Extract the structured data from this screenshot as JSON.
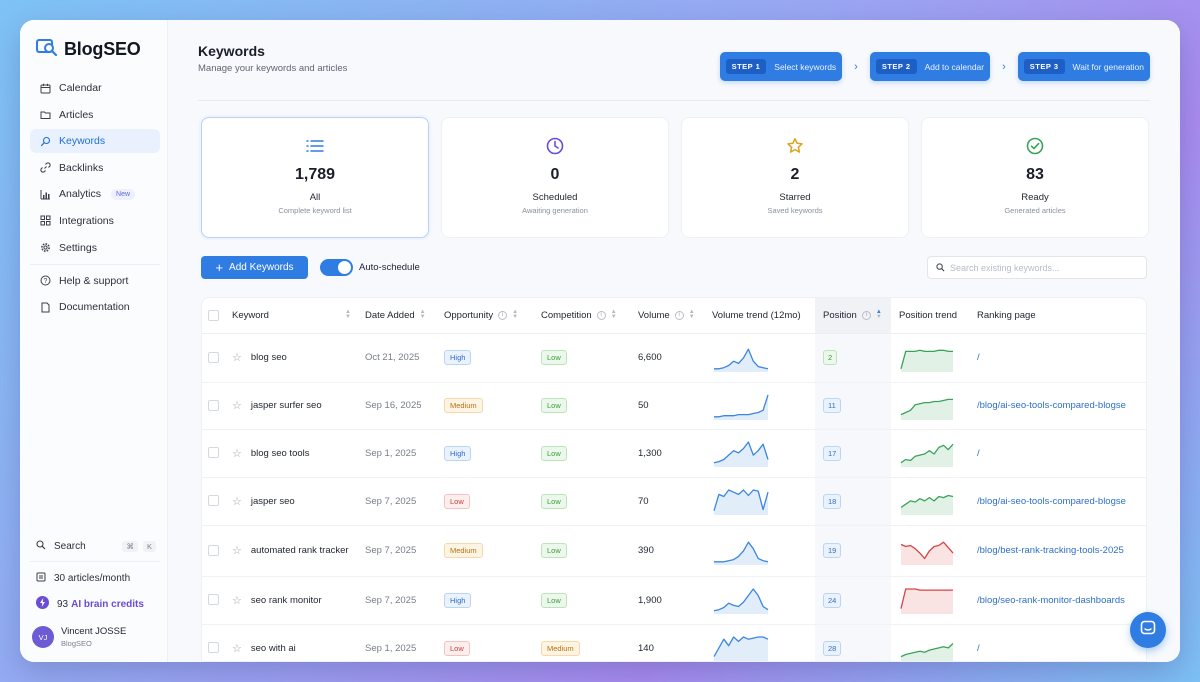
{
  "brand": {
    "name": "BlogSEO",
    "accent": "#2f7de3"
  },
  "sidebar": {
    "items": [
      {
        "label": "Calendar",
        "icon": "calendar-icon",
        "active": false
      },
      {
        "label": "Articles",
        "icon": "folder-icon",
        "active": false
      },
      {
        "label": "Keywords",
        "icon": "key-search-icon",
        "active": true
      },
      {
        "label": "Backlinks",
        "icon": "link-icon",
        "active": false
      },
      {
        "label": "Analytics",
        "icon": "bar-chart-icon",
        "active": false,
        "badge": "New"
      },
      {
        "label": "Integrations",
        "icon": "grid-icon",
        "active": false
      },
      {
        "label": "Settings",
        "icon": "gear-icon",
        "active": false
      },
      {
        "label": "Help & support",
        "icon": "help-icon",
        "active": false
      },
      {
        "label": "Documentation",
        "icon": "document-icon",
        "active": false
      }
    ],
    "search": {
      "label": "Search",
      "shortcut_mod": "⌘",
      "shortcut_key": "K"
    },
    "plan": {
      "label": "30 articles/month"
    },
    "credits": {
      "count": "93",
      "label": "AI brain credits"
    },
    "user": {
      "initials": "VJ",
      "name": "Vincent JOSSE",
      "org": "BlogSEO"
    }
  },
  "header": {
    "title": "Keywords",
    "subtitle": "Manage your keywords and articles",
    "steps": [
      {
        "num": "STEP 1",
        "label": "Select keywords"
      },
      {
        "num": "STEP 2",
        "label": "Add to calendar"
      },
      {
        "num": "STEP 3",
        "label": "Wait for generation"
      }
    ]
  },
  "cards": [
    {
      "value": "1,789",
      "label": "All",
      "sub": "Complete keyword list",
      "icon": "list-icon",
      "active": true
    },
    {
      "value": "0",
      "label": "Scheduled",
      "sub": "Awaiting generation",
      "icon": "clock-icon",
      "active": false
    },
    {
      "value": "2",
      "label": "Starred",
      "sub": "Saved keywords",
      "icon": "star-icon",
      "active": false
    },
    {
      "value": "83",
      "label": "Ready",
      "sub": "Generated articles",
      "icon": "check-circle-icon",
      "active": false
    }
  ],
  "toolbar": {
    "add_label": "Add Keywords",
    "toggle_label": "Auto-schedule",
    "toggle_on": true,
    "search_placeholder": "Search existing keywords..."
  },
  "table": {
    "columns": {
      "keyword": "Keyword",
      "date": "Date Added",
      "opportunity": "Opportunity",
      "competition": "Competition",
      "volume": "Volume",
      "volume_trend": "Volume trend (12mo)",
      "position": "Position",
      "position_trend": "Position trend",
      "ranking_page": "Ranking page"
    },
    "rows": [
      {
        "keyword": "blog seo",
        "date": "Oct 21, 2025",
        "opportunity": "High",
        "competition": "Low",
        "volume": "6,600",
        "position": "2",
        "ranking_page": "/",
        "vol_trend": [
          2,
          2,
          3,
          5,
          9,
          7,
          12,
          20,
          9,
          4,
          3,
          2
        ],
        "pos_trend": [
          2,
          18,
          18,
          18,
          19,
          18,
          18,
          18,
          19,
          19,
          18,
          18
        ],
        "pos_color": "green"
      },
      {
        "keyword": "jasper surfer seo",
        "date": "Sep 16, 2025",
        "opportunity": "Medium",
        "competition": "Low",
        "volume": "50",
        "position": "11",
        "ranking_page": "/blog/ai-seo-tools-compared-blogse",
        "vol_trend": [
          2,
          2,
          3,
          3,
          3,
          4,
          4,
          4,
          5,
          6,
          8,
          22
        ],
        "pos_trend": [
          4,
          6,
          8,
          13,
          14,
          15,
          15,
          16,
          16,
          17,
          18,
          18
        ],
        "pos_color": "green"
      },
      {
        "keyword": "blog seo tools",
        "date": "Sep 1, 2025",
        "opportunity": "High",
        "competition": "Low",
        "volume": "1,300",
        "position": "17",
        "ranking_page": "/",
        "vol_trend": [
          3,
          4,
          6,
          10,
          14,
          12,
          16,
          22,
          10,
          14,
          20,
          6
        ],
        "pos_trend": [
          3,
          6,
          5,
          9,
          10,
          11,
          14,
          11,
          17,
          19,
          15,
          20
        ],
        "pos_color": "green"
      },
      {
        "keyword": "jasper seo",
        "date": "Sep 7, 2025",
        "opportunity": "Low",
        "competition": "Low",
        "volume": "70",
        "position": "18",
        "ranking_page": "/blog/ai-seo-tools-compared-blogse",
        "vol_trend": [
          3,
          18,
          16,
          22,
          20,
          18,
          22,
          17,
          22,
          21,
          4,
          20
        ],
        "pos_trend": [
          6,
          9,
          12,
          11,
          14,
          12,
          15,
          12,
          16,
          15,
          17,
          16
        ],
        "pos_color": "green"
      },
      {
        "keyword": "automated rank tracker",
        "date": "Sep 7, 2025",
        "opportunity": "Medium",
        "competition": "Low",
        "volume": "390",
        "position": "19",
        "ranking_page": "/blog/best-rank-tracking-tools-2025",
        "vol_trend": [
          2,
          2,
          2,
          3,
          4,
          7,
          12,
          20,
          14,
          5,
          3,
          2
        ],
        "pos_trend": [
          18,
          16,
          17,
          14,
          10,
          5,
          12,
          16,
          17,
          20,
          15,
          10
        ],
        "pos_color": "red"
      },
      {
        "keyword": "seo rank monitor",
        "date": "Sep 7, 2025",
        "opportunity": "High",
        "competition": "Low",
        "volume": "1,900",
        "position": "24",
        "ranking_page": "/blog/seo-rank-monitor-dashboards",
        "vol_trend": [
          2,
          3,
          5,
          9,
          7,
          6,
          10,
          16,
          22,
          16,
          6,
          3
        ],
        "pos_trend": [
          4,
          22,
          22,
          22,
          21,
          21,
          21,
          21,
          21,
          21,
          21,
          21
        ],
        "pos_color": "red"
      },
      {
        "keyword": "seo with ai",
        "date": "Sep 1, 2025",
        "opportunity": "Low",
        "competition": "Medium",
        "volume": "140",
        "position": "28",
        "ranking_page": "/",
        "vol_trend": [
          4,
          12,
          20,
          14,
          22,
          18,
          22,
          20,
          21,
          22,
          22,
          20
        ],
        "pos_trend": [
          4,
          6,
          7,
          8,
          9,
          8,
          10,
          11,
          12,
          13,
          12,
          16
        ],
        "pos_color": "green"
      }
    ]
  },
  "colors": {
    "accent": "#2f7de3",
    "trend_blue": "#3a86e0",
    "trend_green": "#3aa35a",
    "trend_red": "#d64545"
  }
}
